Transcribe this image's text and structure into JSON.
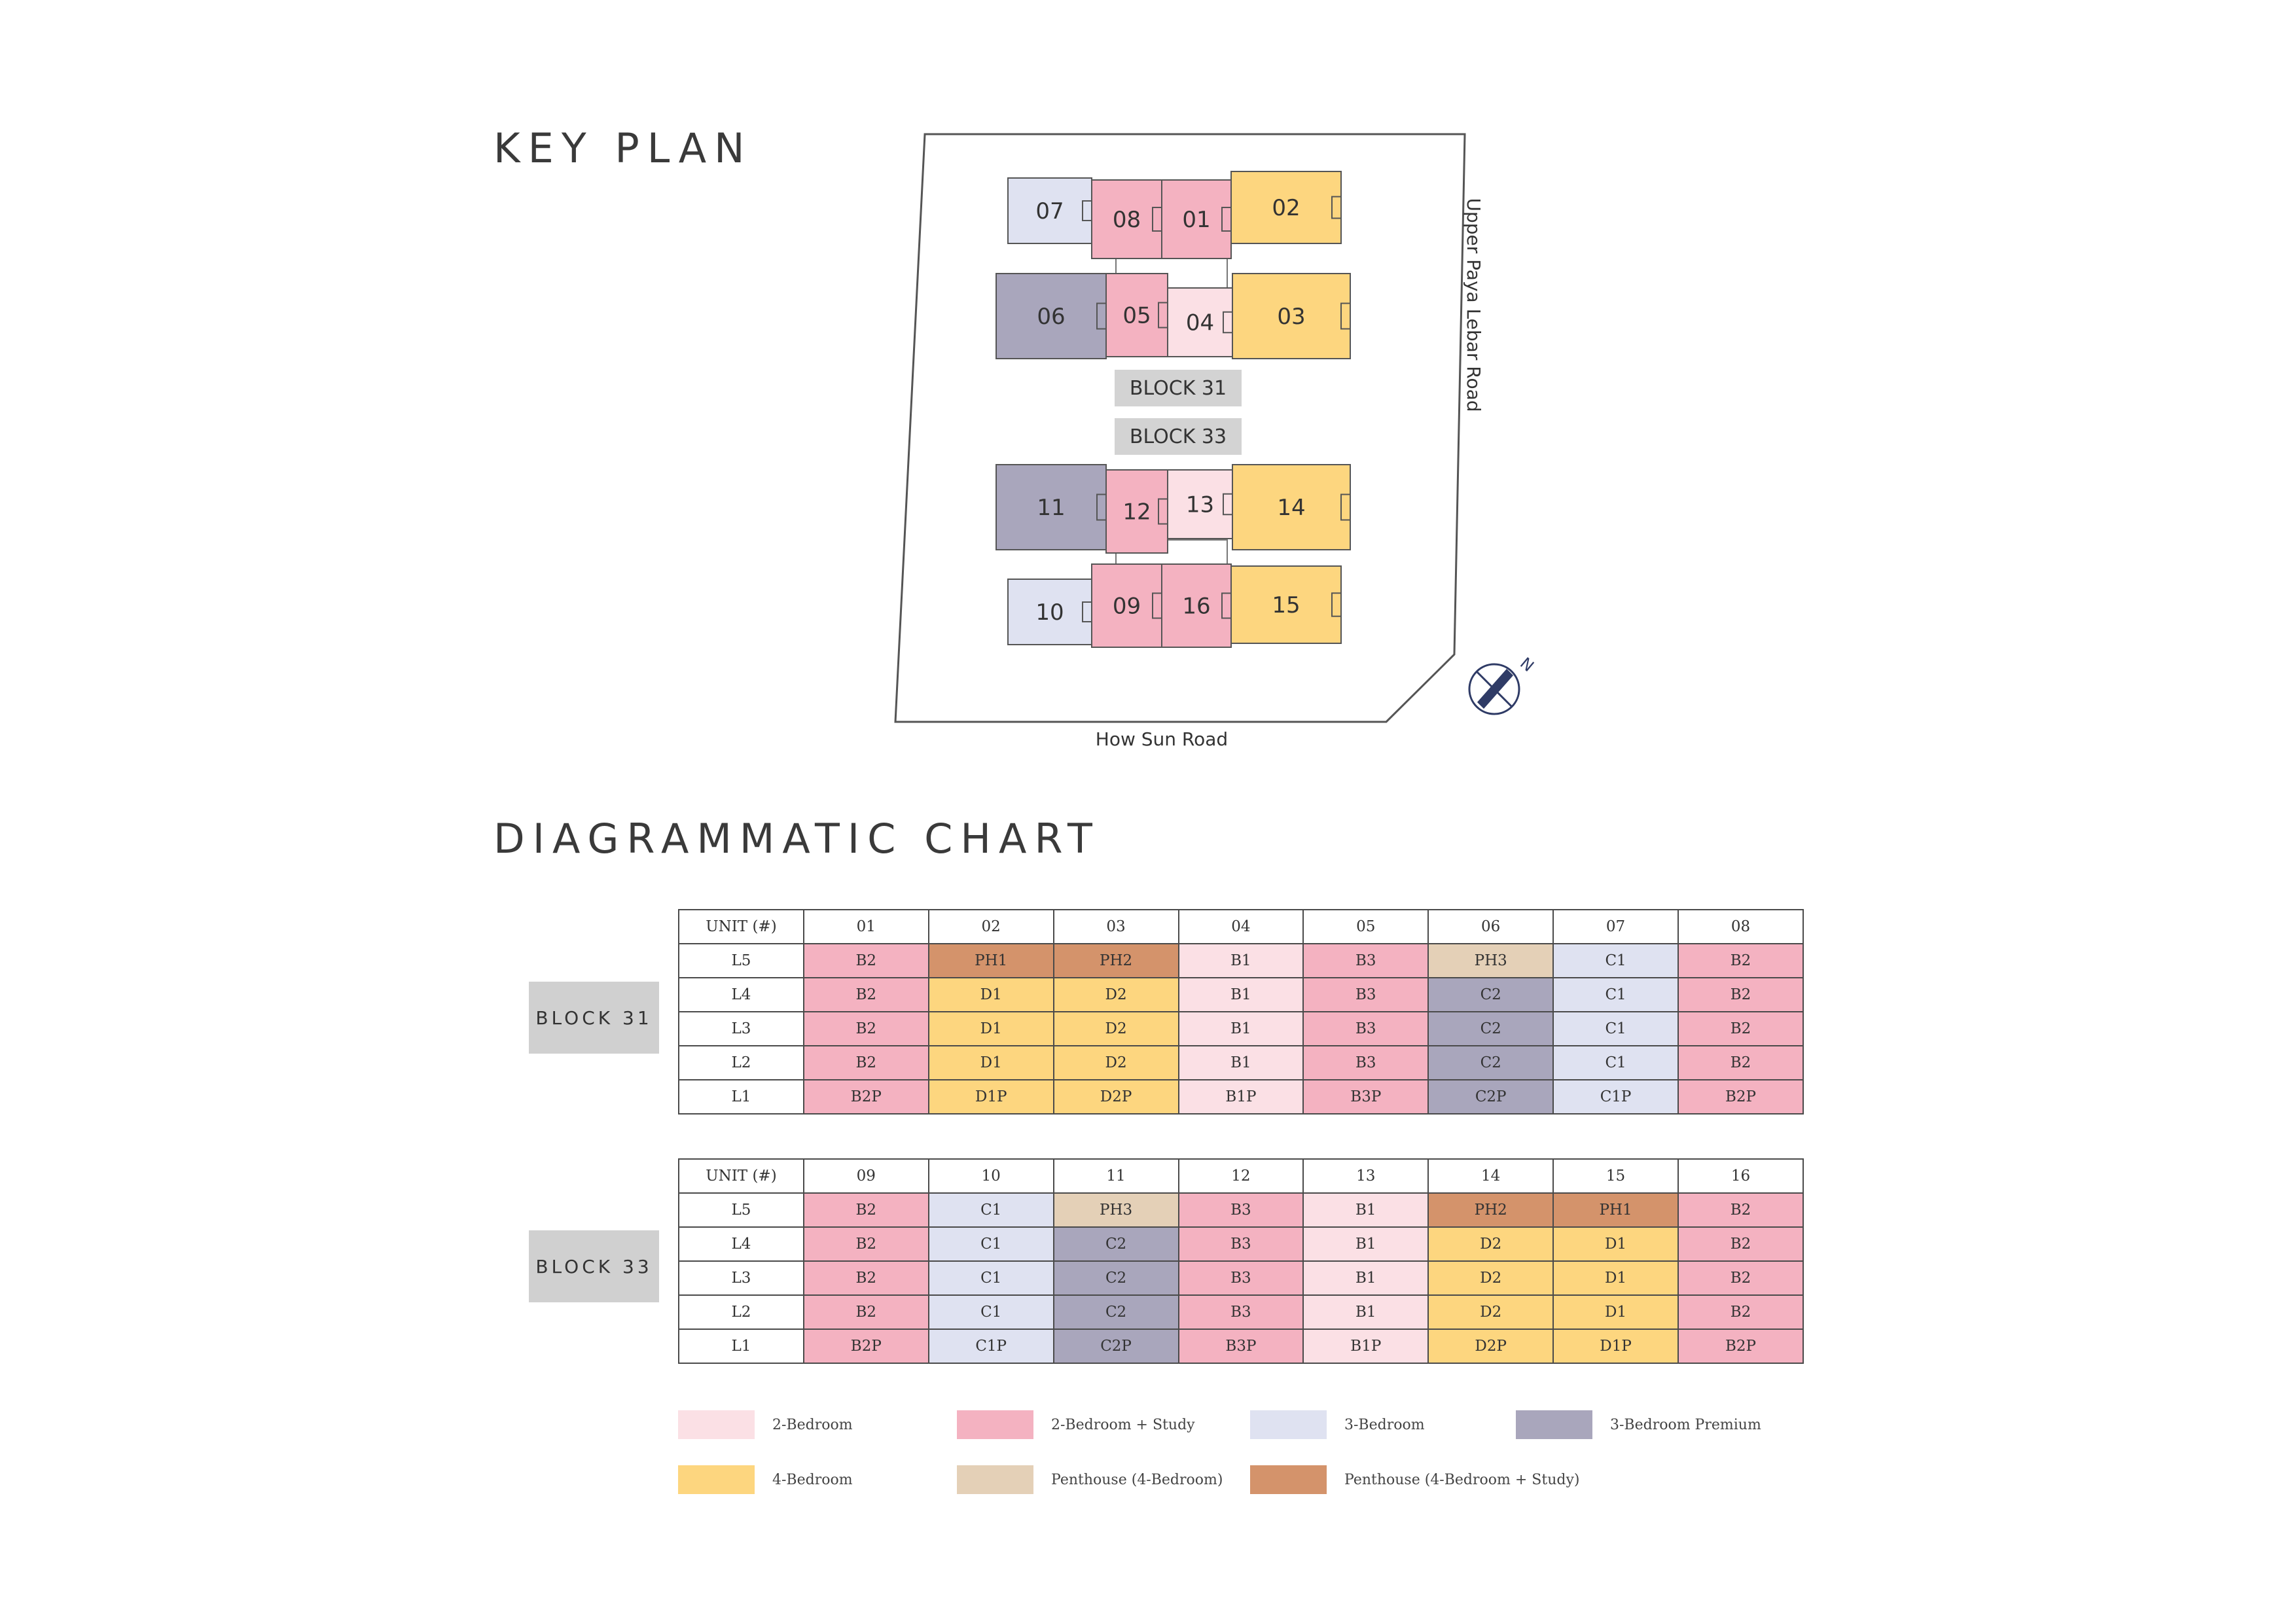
{
  "headings": {
    "key_plan": "KEY PLAN",
    "chart": "DIAGRAMMATIC CHART"
  },
  "key_plan": {
    "roads": {
      "east": "Upper Paya Lebar Road",
      "south": "How Sun Road"
    },
    "compass_label": "N",
    "block_labels": [
      "BLOCK 31",
      "BLOCK 33"
    ],
    "units": [
      {
        "id": "07",
        "type": "C"
      },
      {
        "id": "08",
        "type": "B2"
      },
      {
        "id": "01",
        "type": "B2"
      },
      {
        "id": "02",
        "type": "D"
      },
      {
        "id": "06",
        "type": "C2"
      },
      {
        "id": "05",
        "type": "B3"
      },
      {
        "id": "04",
        "type": "B1"
      },
      {
        "id": "03",
        "type": "D"
      },
      {
        "id": "11",
        "type": "C2"
      },
      {
        "id": "12",
        "type": "B3"
      },
      {
        "id": "13",
        "type": "B1"
      },
      {
        "id": "14",
        "type": "D"
      },
      {
        "id": "10",
        "type": "C"
      },
      {
        "id": "09",
        "type": "B2"
      },
      {
        "id": "16",
        "type": "B2"
      },
      {
        "id": "15",
        "type": "D"
      }
    ]
  },
  "colors": {
    "B1": "#fbe0e5",
    "B2": "#f4b2c1",
    "B3": "#f4b2c1",
    "C": "#dfe2f1",
    "C2": "#a9a6bc",
    "D": "#fdd67f",
    "PH": "#e4d0b7",
    "PHS": "#d4936b",
    "header": "#ffffff"
  },
  "chart": {
    "blocks": [
      {
        "label": "BLOCK 31",
        "header": [
          "UNIT (#)",
          "01",
          "02",
          "03",
          "04",
          "05",
          "06",
          "07",
          "08"
        ],
        "rows": [
          {
            "level": "L5",
            "cells": [
              "B2",
              "PH1",
              "PH2",
              "B1",
              "B3",
              "PH3",
              "C1",
              "B2"
            ]
          },
          {
            "level": "L4",
            "cells": [
              "B2",
              "D1",
              "D2",
              "B1",
              "B3",
              "C2",
              "C1",
              "B2"
            ]
          },
          {
            "level": "L3",
            "cells": [
              "B2",
              "D1",
              "D2",
              "B1",
              "B3",
              "C2",
              "C1",
              "B2"
            ]
          },
          {
            "level": "L2",
            "cells": [
              "B2",
              "D1",
              "D2",
              "B1",
              "B3",
              "C2",
              "C1",
              "B2"
            ]
          },
          {
            "level": "L1",
            "cells": [
              "B2P",
              "D1P",
              "D2P",
              "B1P",
              "B3P",
              "C2P",
              "C1P",
              "B2P"
            ]
          }
        ]
      },
      {
        "label": "BLOCK 33",
        "header": [
          "UNIT (#)",
          "09",
          "10",
          "11",
          "12",
          "13",
          "14",
          "15",
          "16"
        ],
        "rows": [
          {
            "level": "L5",
            "cells": [
              "B2",
              "C1",
              "PH3",
              "B3",
              "B1",
              "PH2",
              "PH1",
              "B2"
            ]
          },
          {
            "level": "L4",
            "cells": [
              "B2",
              "C1",
              "C2",
              "B3",
              "B1",
              "D2",
              "D1",
              "B2"
            ]
          },
          {
            "level": "L3",
            "cells": [
              "B2",
              "C1",
              "C2",
              "B3",
              "B1",
              "D2",
              "D1",
              "B2"
            ]
          },
          {
            "level": "L2",
            "cells": [
              "B2",
              "C1",
              "C2",
              "B3",
              "B1",
              "D2",
              "D1",
              "B2"
            ]
          },
          {
            "level": "L1",
            "cells": [
              "B2P",
              "C1P",
              "C2P",
              "B3P",
              "B1P",
              "D2P",
              "D1P",
              "B2P"
            ]
          }
        ]
      }
    ]
  },
  "legend": [
    {
      "label": "2-Bedroom",
      "color": "#fbe0e5"
    },
    {
      "label": "2-Bedroom + Study",
      "color": "#f4b2c1"
    },
    {
      "label": "3-Bedroom",
      "color": "#dfe2f1"
    },
    {
      "label": "3-Bedroom Premium",
      "color": "#a9a6bc"
    },
    {
      "label": "4-Bedroom",
      "color": "#fdd67f"
    },
    {
      "label": "Penthouse (4-Bedroom)",
      "color": "#e4d0b7"
    },
    {
      "label": "Penthouse (4-Bedroom + Study)",
      "color": "#d4936b"
    }
  ]
}
